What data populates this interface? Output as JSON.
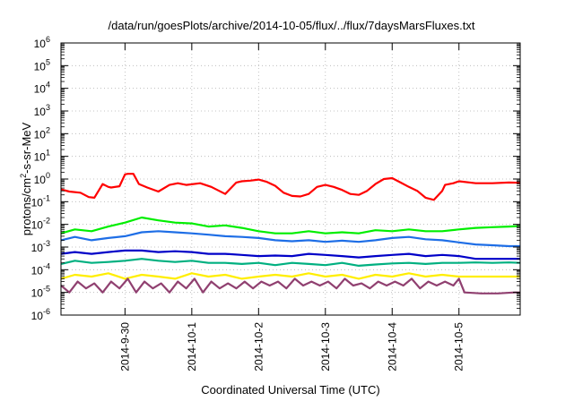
{
  "chart_data": {
    "type": "line",
    "title": "/data/run/goesPlots/archive/2014-10-05/flux/../flux/7daysMarsFluxes.txt",
    "xlabel": "Coordinated Universal Time (UTC)",
    "ylabel": {
      "prefix": "protons/cm",
      "sup": "2",
      "suffix": "-s-sr-MeV"
    },
    "yscale": "log",
    "ylim_exponents": [
      -6,
      6
    ],
    "y_tick_base": "10",
    "y_tick_exponents": [
      "-6",
      "-5",
      "-4",
      "-3",
      "-2",
      "-1",
      "0",
      "1",
      "2",
      "3",
      "4",
      "5",
      "6"
    ],
    "xlim": [
      "2014-09-29T01:00",
      "2014-10-05T22:00"
    ],
    "x_tick_labels": [
      "2014-9-30",
      "2014-10-1",
      "2014-10-2",
      "2014-10-3",
      "2014-10-4",
      "2014-10-5"
    ],
    "x_tick_dates": [
      "2014-09-30T00:00",
      "2014-10-01T00:00",
      "2014-10-02T00:00",
      "2014-10-03T00:00",
      "2014-10-04T00:00",
      "2014-10-05T00:00"
    ],
    "grid": true,
    "series": [
      {
        "color": "#ff0000",
        "x": [
          "2014-09-29T01:00",
          "2014-09-29T04:00",
          "2014-09-29T08:00",
          "2014-09-29T11:00",
          "2014-09-29T13:00",
          "2014-09-29T16:00",
          "2014-09-29T18:00",
          "2014-09-29T19:00",
          "2014-09-29T22:00",
          "2014-09-30T00:00",
          "2014-09-30T01:00",
          "2014-09-30T03:00",
          "2014-09-30T05:00",
          "2014-09-30T08:00",
          "2014-09-30T12:00",
          "2014-09-30T16:00",
          "2014-09-30T19:00",
          "2014-09-30T22:00",
          "2014-10-01T03:00",
          "2014-10-01T07:00",
          "2014-10-01T12:00",
          "2014-10-01T16:00",
          "2014-10-01T18:00",
          "2014-10-01T21:00",
          "2014-10-02T00:00",
          "2014-10-02T03:00",
          "2014-10-02T06:00",
          "2014-10-02T09:00",
          "2014-10-02T12:00",
          "2014-10-02T15:00",
          "2014-10-02T18:00",
          "2014-10-02T21:00",
          "2014-10-03T00:00",
          "2014-10-03T03:00",
          "2014-10-03T06:00",
          "2014-10-03T09:00",
          "2014-10-03T12:00",
          "2014-10-03T15:00",
          "2014-10-03T18:00",
          "2014-10-03T21:00",
          "2014-10-04T00:00",
          "2014-10-04T03:00",
          "2014-10-04T06:00",
          "2014-10-04T09:00",
          "2014-10-04T12:00",
          "2014-10-04T15:00",
          "2014-10-04T18:00",
          "2014-10-04T19:00",
          "2014-10-04T22:00",
          "2014-10-05T00:00",
          "2014-10-05T06:00",
          "2014-10-05T12:00",
          "2014-10-05T18:00",
          "2014-10-05T22:00"
        ],
        "y": [
          0.35,
          0.28,
          0.25,
          0.16,
          0.15,
          0.6,
          0.45,
          0.42,
          0.48,
          1.6,
          1.7,
          1.7,
          0.6,
          0.42,
          0.28,
          0.55,
          0.65,
          0.55,
          0.65,
          0.45,
          0.22,
          0.7,
          0.8,
          0.85,
          0.95,
          0.75,
          0.5,
          0.25,
          0.18,
          0.17,
          0.22,
          0.45,
          0.55,
          0.45,
          0.33,
          0.22,
          0.2,
          0.3,
          0.6,
          1.0,
          1.1,
          0.7,
          0.45,
          0.3,
          0.15,
          0.12,
          0.3,
          0.55,
          0.65,
          0.8,
          0.65,
          0.65,
          0.7,
          0.68
        ]
      },
      {
        "color": "#00ee00",
        "x": [
          "2014-09-29T01:00",
          "2014-09-29T06:00",
          "2014-09-29T12:00",
          "2014-09-29T18:00",
          "2014-09-30T00:00",
          "2014-09-30T06:00",
          "2014-09-30T12:00",
          "2014-09-30T18:00",
          "2014-10-01T00:00",
          "2014-10-01T06:00",
          "2014-10-01T12:00",
          "2014-10-01T18:00",
          "2014-10-02T00:00",
          "2014-10-02T06:00",
          "2014-10-02T12:00",
          "2014-10-02T18:00",
          "2014-10-03T00:00",
          "2014-10-03T06:00",
          "2014-10-03T12:00",
          "2014-10-03T18:00",
          "2014-10-04T00:00",
          "2014-10-04T06:00",
          "2014-10-04T12:00",
          "2014-10-04T18:00",
          "2014-10-05T00:00",
          "2014-10-05T06:00",
          "2014-10-05T12:00",
          "2014-10-05T18:00",
          "2014-10-05T22:00"
        ],
        "y": [
          0.004,
          0.006,
          0.005,
          0.008,
          0.012,
          0.02,
          0.015,
          0.012,
          0.011,
          0.008,
          0.009,
          0.007,
          0.005,
          0.004,
          0.004,
          0.005,
          0.004,
          0.0045,
          0.004,
          0.0055,
          0.005,
          0.006,
          0.005,
          0.005,
          0.006,
          0.007,
          0.0075,
          0.008,
          0.0085
        ]
      },
      {
        "color": "#1e6ee6",
        "x": [
          "2014-09-29T01:00",
          "2014-09-29T06:00",
          "2014-09-29T12:00",
          "2014-09-29T18:00",
          "2014-09-30T00:00",
          "2014-09-30T06:00",
          "2014-09-30T12:00",
          "2014-09-30T18:00",
          "2014-10-01T00:00",
          "2014-10-01T06:00",
          "2014-10-01T12:00",
          "2014-10-01T18:00",
          "2014-10-02T00:00",
          "2014-10-02T06:00",
          "2014-10-02T12:00",
          "2014-10-02T18:00",
          "2014-10-03T00:00",
          "2014-10-03T06:00",
          "2014-10-03T12:00",
          "2014-10-03T18:00",
          "2014-10-04T00:00",
          "2014-10-04T06:00",
          "2014-10-04T12:00",
          "2014-10-04T18:00",
          "2014-10-05T00:00",
          "2014-10-05T06:00",
          "2014-10-05T12:00",
          "2014-10-05T18:00",
          "2014-10-05T22:00"
        ],
        "y": [
          0.002,
          0.0028,
          0.002,
          0.0025,
          0.003,
          0.0045,
          0.005,
          0.0045,
          0.004,
          0.0035,
          0.003,
          0.0028,
          0.0025,
          0.002,
          0.0018,
          0.002,
          0.0017,
          0.0019,
          0.0017,
          0.002,
          0.0025,
          0.0028,
          0.0022,
          0.002,
          0.0016,
          0.0013,
          0.0012,
          0.0011,
          0.0011
        ]
      },
      {
        "color": "#0000c8",
        "x": [
          "2014-09-29T01:00",
          "2014-09-29T06:00",
          "2014-09-29T12:00",
          "2014-09-29T18:00",
          "2014-09-30T00:00",
          "2014-09-30T06:00",
          "2014-09-30T12:00",
          "2014-09-30T18:00",
          "2014-10-01T00:00",
          "2014-10-01T06:00",
          "2014-10-01T12:00",
          "2014-10-01T18:00",
          "2014-10-02T00:00",
          "2014-10-02T06:00",
          "2014-10-02T12:00",
          "2014-10-02T18:00",
          "2014-10-03T00:00",
          "2014-10-03T06:00",
          "2014-10-03T12:00",
          "2014-10-03T18:00",
          "2014-10-04T00:00",
          "2014-10-04T06:00",
          "2014-10-04T12:00",
          "2014-10-04T18:00",
          "2014-10-05T00:00",
          "2014-10-05T06:00",
          "2014-10-05T12:00",
          "2014-10-05T18:00",
          "2014-10-05T22:00"
        ],
        "y": [
          0.0005,
          0.0006,
          0.0005,
          0.0006,
          0.0007,
          0.0007,
          0.0006,
          0.00065,
          0.0006,
          0.0005,
          0.0005,
          0.00045,
          0.0004,
          0.00042,
          0.0004,
          0.0005,
          0.00045,
          0.0004,
          0.00035,
          0.0004,
          0.00045,
          0.0005,
          0.0004,
          0.00045,
          0.0004,
          0.0003,
          0.0003,
          0.0003,
          0.0003
        ]
      },
      {
        "color": "#00b080",
        "x": [
          "2014-09-29T01:00",
          "2014-09-29T06:00",
          "2014-09-29T12:00",
          "2014-09-29T18:00",
          "2014-09-30T00:00",
          "2014-09-30T06:00",
          "2014-09-30T12:00",
          "2014-09-30T18:00",
          "2014-10-01T00:00",
          "2014-10-01T06:00",
          "2014-10-01T12:00",
          "2014-10-01T18:00",
          "2014-10-02T00:00",
          "2014-10-02T06:00",
          "2014-10-02T12:00",
          "2014-10-02T18:00",
          "2014-10-03T00:00",
          "2014-10-03T06:00",
          "2014-10-03T12:00",
          "2014-10-03T18:00",
          "2014-10-04T00:00",
          "2014-10-04T06:00",
          "2014-10-04T12:00",
          "2014-10-04T18:00",
          "2014-10-05T00:00",
          "2014-10-05T06:00",
          "2014-10-05T12:00",
          "2014-10-05T18:00",
          "2014-10-05T22:00"
        ],
        "y": [
          0.00018,
          0.00025,
          0.0002,
          0.00022,
          0.00025,
          0.0003,
          0.00025,
          0.00022,
          0.00025,
          0.0002,
          0.0002,
          0.00018,
          0.0002,
          0.00016,
          0.0002,
          0.00018,
          0.00016,
          0.0002,
          0.00015,
          0.00017,
          0.00019,
          0.0002,
          0.00018,
          0.0002,
          0.0002,
          0.00021,
          0.0002,
          0.00021,
          0.0002
        ]
      },
      {
        "color": "#ffee00",
        "x": [
          "2014-09-29T01:00",
          "2014-09-29T06:00",
          "2014-09-29T12:00",
          "2014-09-29T18:00",
          "2014-09-30T00:00",
          "2014-09-30T06:00",
          "2014-09-30T12:00",
          "2014-09-30T18:00",
          "2014-10-01T00:00",
          "2014-10-01T06:00",
          "2014-10-01T12:00",
          "2014-10-01T18:00",
          "2014-10-02T00:00",
          "2014-10-02T06:00",
          "2014-10-02T12:00",
          "2014-10-02T18:00",
          "2014-10-03T00:00",
          "2014-10-03T06:00",
          "2014-10-03T12:00",
          "2014-10-03T18:00",
          "2014-10-04T00:00",
          "2014-10-04T06:00",
          "2014-10-04T12:00",
          "2014-10-04T18:00",
          "2014-10-05T00:00",
          "2014-10-05T06:00",
          "2014-10-05T12:00",
          "2014-10-05T18:00",
          "2014-10-05T22:00"
        ],
        "y": [
          4e-05,
          6e-05,
          5e-05,
          7e-05,
          4e-05,
          6e-05,
          5e-05,
          4e-05,
          7e-05,
          5e-05,
          6e-05,
          4e-05,
          5e-05,
          6e-05,
          5e-05,
          7e-05,
          5e-05,
          6e-05,
          4e-05,
          6e-05,
          5e-05,
          7e-05,
          5e-05,
          6e-05,
          5e-05,
          5e-05,
          5e-05,
          5e-05,
          5e-05
        ]
      },
      {
        "color": "#904070",
        "x": [
          "2014-09-29T01:00",
          "2014-09-29T04:00",
          "2014-09-29T07:00",
          "2014-09-29T10:00",
          "2014-09-29T13:00",
          "2014-09-29T16:00",
          "2014-09-29T19:00",
          "2014-09-29T22:00",
          "2014-09-30T01:00",
          "2014-09-30T04:00",
          "2014-09-30T07:00",
          "2014-09-30T10:00",
          "2014-09-30T13:00",
          "2014-09-30T16:00",
          "2014-09-30T19:00",
          "2014-09-30T22:00",
          "2014-10-01T01:00",
          "2014-10-01T04:00",
          "2014-10-01T07:00",
          "2014-10-01T10:00",
          "2014-10-01T13:00",
          "2014-10-01T16:00",
          "2014-10-01T19:00",
          "2014-10-01T22:00",
          "2014-10-02T01:00",
          "2014-10-02T04:00",
          "2014-10-02T07:00",
          "2014-10-02T10:00",
          "2014-10-02T13:00",
          "2014-10-02T16:00",
          "2014-10-02T19:00",
          "2014-10-02T22:00",
          "2014-10-03T01:00",
          "2014-10-03T04:00",
          "2014-10-03T07:00",
          "2014-10-03T10:00",
          "2014-10-03T13:00",
          "2014-10-03T16:00",
          "2014-10-03T19:00",
          "2014-10-03T22:00",
          "2014-10-04T01:00",
          "2014-10-04T04:00",
          "2014-10-04T07:00",
          "2014-10-04T10:00",
          "2014-10-04T13:00",
          "2014-10-04T16:00",
          "2014-10-04T19:00",
          "2014-10-04T22:00",
          "2014-10-05T00:00",
          "2014-10-05T02:00",
          "2014-10-05T08:00",
          "2014-10-05T14:00",
          "2014-10-05T20:00",
          "2014-10-05T22:00"
        ],
        "y": [
          2e-05,
          1e-05,
          3e-05,
          1.5e-05,
          2.5e-05,
          1e-05,
          3e-05,
          1.5e-05,
          4e-05,
          1e-05,
          3e-05,
          1.5e-05,
          2.5e-05,
          1e-05,
          3e-05,
          1.5e-05,
          4e-05,
          1e-05,
          3e-05,
          1.5e-05,
          2.5e-05,
          1.5e-05,
          3e-05,
          1.5e-05,
          3e-05,
          2e-05,
          3e-05,
          1.5e-05,
          4e-05,
          2e-05,
          3e-05,
          2e-05,
          3e-05,
          1.5e-05,
          4e-05,
          2e-05,
          2.5e-05,
          1.5e-05,
          3e-05,
          2e-05,
          3e-05,
          2e-05,
          4e-05,
          1.5e-05,
          3e-05,
          2e-05,
          3e-05,
          2e-05,
          4e-05,
          1e-05,
          9e-06,
          9e-06,
          1e-05,
          1e-05
        ]
      }
    ]
  }
}
